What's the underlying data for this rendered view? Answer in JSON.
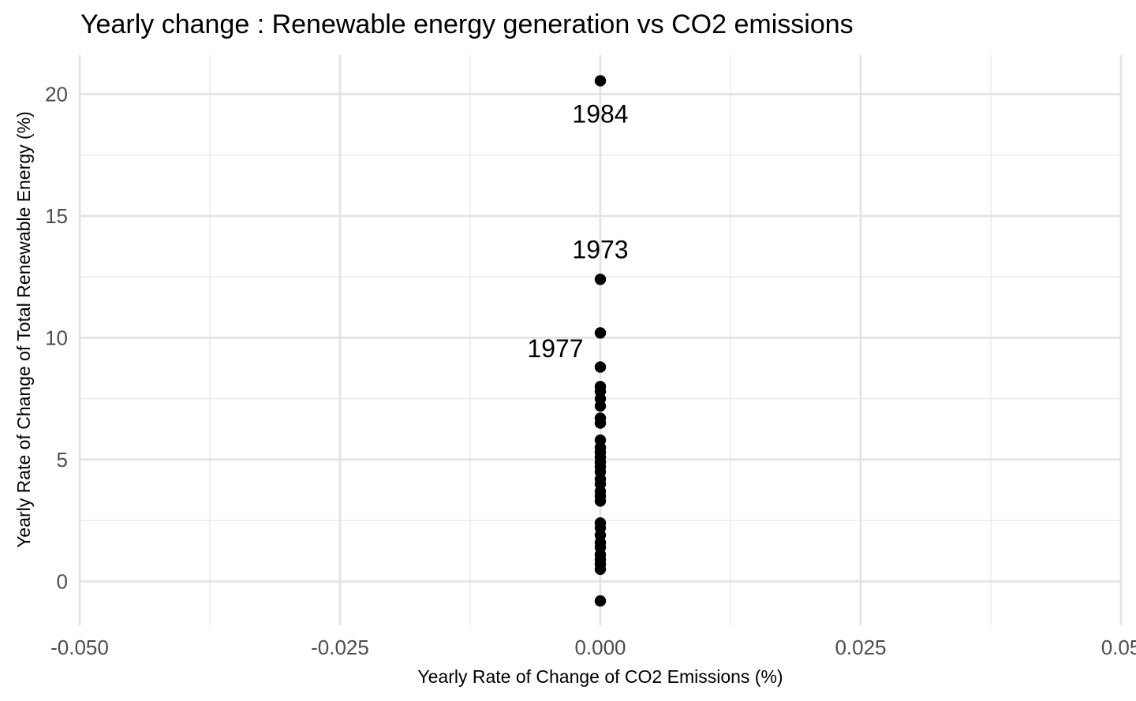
{
  "chart_data": {
    "type": "scatter",
    "title": "Yearly change : Renewable energy generation vs CO2 emissions",
    "xlabel": "Yearly Rate of Change of CO2 Emissions (%)",
    "ylabel": "Yearly Rate of Change of Total Renewable Energy (%)",
    "xlim": [
      -0.05,
      0.05
    ],
    "ylim": [
      -1.8,
      21.6
    ],
    "x_ticks": [
      -0.05,
      -0.025,
      0,
      0.025,
      0.05
    ],
    "x_tick_labels": [
      "-0.050",
      "-0.025",
      "0.000",
      "0.025",
      "0.05"
    ],
    "y_ticks": [
      0,
      5,
      10,
      15,
      20
    ],
    "y_tick_labels": [
      "0",
      "5",
      "10",
      "15",
      "20"
    ],
    "grid": true,
    "legend": "none",
    "point_color": "#000000",
    "points": [
      {
        "x": 0,
        "y": 20.55,
        "label": "1984"
      },
      {
        "x": 0,
        "y": 12.4,
        "label": "1973"
      },
      {
        "x": 0,
        "y": 10.2,
        "label": "1977"
      },
      {
        "x": 0,
        "y": 8.8
      },
      {
        "x": 0,
        "y": 8.0
      },
      {
        "x": 0,
        "y": 7.8
      },
      {
        "x": 0,
        "y": 7.5
      },
      {
        "x": 0,
        "y": 7.2
      },
      {
        "x": 0,
        "y": 6.7
      },
      {
        "x": 0,
        "y": 6.5
      },
      {
        "x": 0,
        "y": 5.8
      },
      {
        "x": 0,
        "y": 5.5
      },
      {
        "x": 0,
        "y": 5.3
      },
      {
        "x": 0,
        "y": 5.1
      },
      {
        "x": 0,
        "y": 4.9
      },
      {
        "x": 0,
        "y": 4.7
      },
      {
        "x": 0,
        "y": 4.5
      },
      {
        "x": 0,
        "y": 4.2
      },
      {
        "x": 0,
        "y": 4.0
      },
      {
        "x": 0,
        "y": 3.7
      },
      {
        "x": 0,
        "y": 3.5
      },
      {
        "x": 0,
        "y": 3.3
      },
      {
        "x": 0,
        "y": 2.4
      },
      {
        "x": 0,
        "y": 2.2
      },
      {
        "x": 0,
        "y": 1.9
      },
      {
        "x": 0,
        "y": 1.6
      },
      {
        "x": 0,
        "y": 1.4
      },
      {
        "x": 0,
        "y": 1.1
      },
      {
        "x": 0,
        "y": 0.9
      },
      {
        "x": 0,
        "y": 0.7
      },
      {
        "x": 0,
        "y": 0.5
      },
      {
        "x": 0,
        "y": -0.8
      }
    ]
  }
}
